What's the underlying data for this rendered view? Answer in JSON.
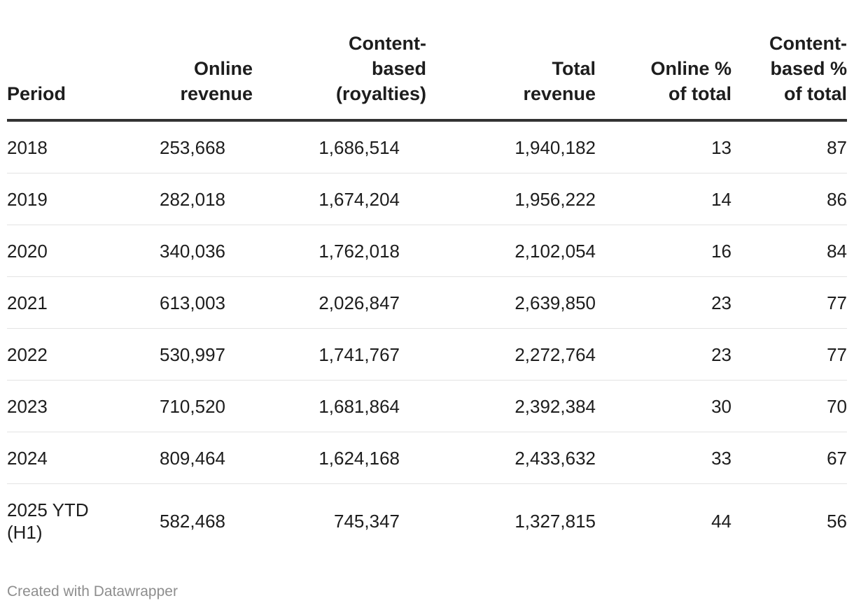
{
  "chart_data": {
    "type": "table",
    "columns": [
      "Period",
      "Online revenue",
      "Content-based (royalties)",
      "Total revenue",
      "Online % of total",
      "Content-based % of total"
    ],
    "column_header_lines": [
      [
        "Period"
      ],
      [
        "Online",
        "revenue"
      ],
      [
        "Content-",
        "based",
        "(royalties)"
      ],
      [
        "Total",
        "revenue"
      ],
      [
        "Online %",
        "of total"
      ],
      [
        "Content-",
        "based %",
        "of total"
      ]
    ],
    "rows": [
      {
        "period": "2018",
        "online": "253,668",
        "content": "1,686,514",
        "total": "1,940,182",
        "online_pct": "13",
        "content_pct": "87"
      },
      {
        "period": "2019",
        "online": "282,018",
        "content": "1,674,204",
        "total": "1,956,222",
        "online_pct": "14",
        "content_pct": "86"
      },
      {
        "period": "2020",
        "online": "340,036",
        "content": "1,762,018",
        "total": "2,102,054",
        "online_pct": "16",
        "content_pct": "84"
      },
      {
        "period": "2021",
        "online": "613,003",
        "content": "2,026,847",
        "total": "2,639,850",
        "online_pct": "23",
        "content_pct": "77"
      },
      {
        "period": "2022",
        "online": "530,997",
        "content": "1,741,767",
        "total": "2,272,764",
        "online_pct": "23",
        "content_pct": "77"
      },
      {
        "period": "2023",
        "online": "710,520",
        "content": "1,681,864",
        "total": "2,392,384",
        "online_pct": "30",
        "content_pct": "70"
      },
      {
        "period": "2024",
        "online": "809,464",
        "content": "1,624,168",
        "total": "2,433,632",
        "online_pct": "33",
        "content_pct": "67"
      },
      {
        "period_lines": [
          "2025 YTD",
          "(H1)"
        ],
        "online": "582,468",
        "content": "745,347",
        "total": "1,327,815",
        "online_pct": "44",
        "content_pct": "56"
      }
    ]
  },
  "footer": {
    "credit": "Created with Datawrapper"
  }
}
